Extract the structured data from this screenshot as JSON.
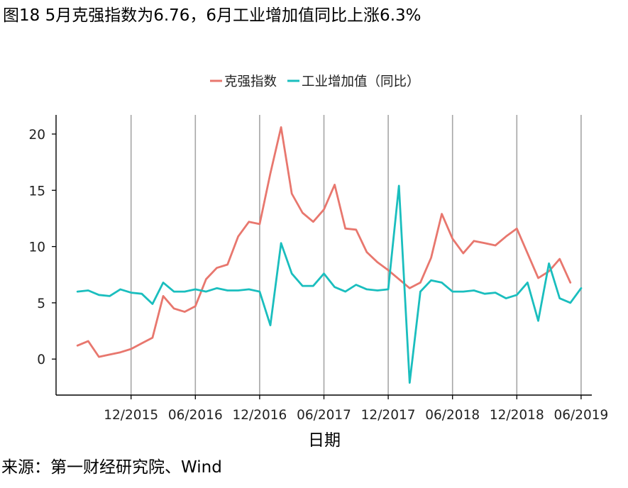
{
  "page": {
    "title": "图18 5月克强指数为6.76，6月工业增加值同比上涨6.3%",
    "source": "来源：第一财经研究院、Wind"
  },
  "chart_data": {
    "type": "line",
    "title": "",
    "xlabel": "日期",
    "ylabel": "",
    "x_range": [
      "2015-05",
      "2019-07"
    ],
    "ylim": [
      -3.2,
      21.7
    ],
    "yticks": [
      0,
      5,
      10,
      15,
      20
    ],
    "xticks": [
      "2015-12",
      "2016-06",
      "2016-12",
      "2017-06",
      "2017-12",
      "2018-06",
      "2018-12",
      "2019-06"
    ],
    "xtick_labels": [
      "12/2015",
      "06/2016",
      "12/2016",
      "06/2017",
      "12/2017",
      "06/2018",
      "12/2018",
      "06/2019"
    ],
    "grid": "vertical lines at x ticks",
    "legend_position": "top",
    "series": [
      {
        "name": "克强指数",
        "color": "#E8776E",
        "points": [
          [
            "2015-07",
            1.2
          ],
          [
            "2015-08",
            1.6
          ],
          [
            "2015-09",
            0.2
          ],
          [
            "2015-10",
            0.4
          ],
          [
            "2015-11",
            0.6
          ],
          [
            "2015-12",
            0.9
          ],
          [
            "2016-01",
            1.4
          ],
          [
            "2016-02",
            1.9
          ],
          [
            "2016-03",
            5.6
          ],
          [
            "2016-04",
            4.5
          ],
          [
            "2016-05",
            4.2
          ],
          [
            "2016-06",
            4.7
          ],
          [
            "2016-07",
            7.1
          ],
          [
            "2016-08",
            8.1
          ],
          [
            "2016-09",
            8.4
          ],
          [
            "2016-10",
            10.9
          ],
          [
            "2016-11",
            12.2
          ],
          [
            "2016-12",
            12.0
          ],
          [
            "2017-01",
            16.5
          ],
          [
            "2017-02",
            20.6
          ],
          [
            "2017-03",
            14.7
          ],
          [
            "2017-04",
            13.0
          ],
          [
            "2017-05",
            12.2
          ],
          [
            "2017-06",
            13.3
          ],
          [
            "2017-07",
            15.5
          ],
          [
            "2017-08",
            11.6
          ],
          [
            "2017-09",
            11.5
          ],
          [
            "2017-10",
            9.5
          ],
          [
            "2017-11",
            8.6
          ],
          [
            "2017-12",
            7.9
          ],
          [
            "2018-01",
            7.1
          ],
          [
            "2018-02",
            6.3
          ],
          [
            "2018-03",
            6.8
          ],
          [
            "2018-04",
            9.0
          ],
          [
            "2018-05",
            12.9
          ],
          [
            "2018-06",
            10.7
          ],
          [
            "2018-07",
            9.4
          ],
          [
            "2018-08",
            10.5
          ],
          [
            "2018-09",
            10.3
          ],
          [
            "2018-10",
            10.1
          ],
          [
            "2018-11",
            10.9
          ],
          [
            "2018-12",
            11.6
          ],
          [
            "2019-01",
            9.4
          ],
          [
            "2019-02",
            7.2
          ],
          [
            "2019-03",
            7.8
          ],
          [
            "2019-04",
            8.9
          ],
          [
            "2019-05",
            6.8
          ]
        ]
      },
      {
        "name": "工业增加值（同比）",
        "color": "#1ABEBE",
        "points": [
          [
            "2015-07",
            6.0
          ],
          [
            "2015-08",
            6.1
          ],
          [
            "2015-09",
            5.7
          ],
          [
            "2015-10",
            5.6
          ],
          [
            "2015-11",
            6.2
          ],
          [
            "2015-12",
            5.9
          ],
          [
            "2016-01",
            5.8
          ],
          [
            "2016-02",
            4.9
          ],
          [
            "2016-03",
            6.8
          ],
          [
            "2016-04",
            6.0
          ],
          [
            "2016-05",
            6.0
          ],
          [
            "2016-06",
            6.2
          ],
          [
            "2016-07",
            6.0
          ],
          [
            "2016-08",
            6.3
          ],
          [
            "2016-09",
            6.1
          ],
          [
            "2016-10",
            6.1
          ],
          [
            "2016-11",
            6.2
          ],
          [
            "2016-12",
            6.0
          ],
          [
            "2017-01",
            3.0
          ],
          [
            "2017-02",
            10.3
          ],
          [
            "2017-03",
            7.6
          ],
          [
            "2017-04",
            6.5
          ],
          [
            "2017-05",
            6.5
          ],
          [
            "2017-06",
            7.6
          ],
          [
            "2017-07",
            6.4
          ],
          [
            "2017-08",
            6.0
          ],
          [
            "2017-09",
            6.6
          ],
          [
            "2017-10",
            6.2
          ],
          [
            "2017-11",
            6.1
          ],
          [
            "2017-12",
            6.2
          ],
          [
            "2018-01",
            15.4
          ],
          [
            "2018-02",
            -2.1
          ],
          [
            "2018-03",
            6.0
          ],
          [
            "2018-04",
            7.0
          ],
          [
            "2018-05",
            6.8
          ],
          [
            "2018-06",
            6.0
          ],
          [
            "2018-07",
            6.0
          ],
          [
            "2018-08",
            6.1
          ],
          [
            "2018-09",
            5.8
          ],
          [
            "2018-10",
            5.9
          ],
          [
            "2018-11",
            5.4
          ],
          [
            "2018-12",
            5.7
          ],
          [
            "2019-01",
            6.8
          ],
          [
            "2019-02",
            3.4
          ],
          [
            "2019-03",
            8.5
          ],
          [
            "2019-04",
            5.4
          ],
          [
            "2019-05",
            5.0
          ],
          [
            "2019-06",
            6.3
          ]
        ]
      }
    ]
  }
}
